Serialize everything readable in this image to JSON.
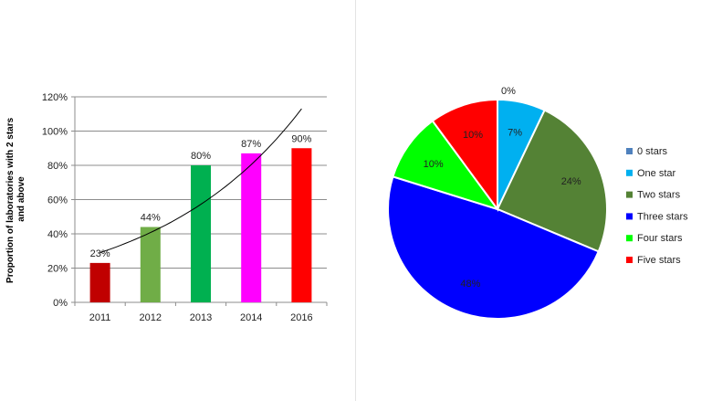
{
  "chart_data": [
    {
      "type": "bar",
      "title": "",
      "xlabel": "",
      "ylabel_line1": "Proportion of laboratories with 2 stars",
      "ylabel_line2": "and above",
      "categories": [
        "2011",
        "2012",
        "2013",
        "2014",
        "2016"
      ],
      "values": [
        23,
        44,
        80,
        87,
        90
      ],
      "data_labels": [
        "23%",
        "44%",
        "80%",
        "87%",
        "90%"
      ],
      "bar_colors": [
        "#c00000",
        "#70ad47",
        "#00b050",
        "#ff00ff",
        "#ff0000"
      ],
      "yticks": [
        "0%",
        "20%",
        "40%",
        "60%",
        "80%",
        "100%",
        "120%"
      ],
      "ylim": [
        0,
        120
      ],
      "grid": true,
      "trendline": {
        "type": "exponential",
        "y_start": 29,
        "y_end": 113
      }
    },
    {
      "type": "pie",
      "title": "",
      "legend_position": "right",
      "slices": [
        {
          "label": "0 stars",
          "value": 0,
          "data_label": "0%",
          "color": "#4f81bd"
        },
        {
          "label": "One star",
          "value": 7,
          "data_label": "7%",
          "color": "#00b0f0"
        },
        {
          "label": "Two stars",
          "value": 24,
          "data_label": "24%",
          "color": "#548235"
        },
        {
          "label": "Three stars",
          "value": 48,
          "data_label": "48%",
          "color": "#0000ff"
        },
        {
          "label": "Four stars",
          "value": 10,
          "data_label": "10%",
          "color": "#00ff00"
        },
        {
          "label": "Five stars",
          "value": 10,
          "data_label": "10%",
          "color": "#ff0000"
        }
      ]
    }
  ]
}
